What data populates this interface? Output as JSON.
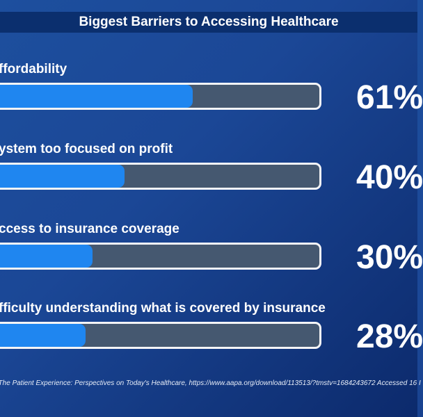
{
  "chart_data": {
    "type": "bar",
    "orientation": "horizontal",
    "title": "Biggest Barriers to Accessing Healthcare",
    "categories": [
      "ffordability",
      "ystem too focused on profit",
      "ccess to insurance coverage",
      "fficulty understanding what is covered by insurance"
    ],
    "values": [
      61,
      40,
      30,
      28
    ],
    "value_labels": [
      "61%",
      "40%",
      "30%",
      "28%"
    ],
    "xlim": [
      0,
      100
    ],
    "source": ": The Patient Experience: Perspectives on Today's Healthcare, https://www.aapa.org/download/113513/?tmstv=1684243672 Accessed 16 I"
  },
  "colors": {
    "bar_fill": "#1f86f0",
    "bar_track": "#455870",
    "title_bar": "#0b2f6e"
  }
}
